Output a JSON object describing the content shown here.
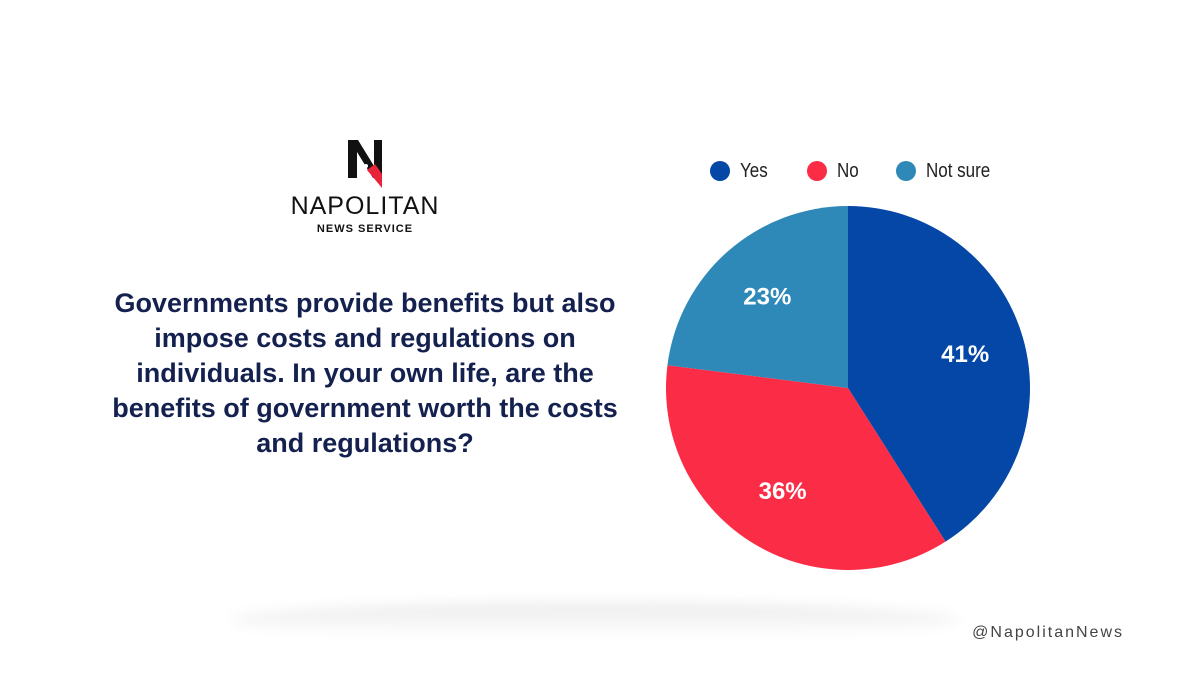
{
  "brand": {
    "name": "NAPOLITAN",
    "subtitle": "NEWS SERVICE",
    "logo_letter": "N",
    "handle": "@NapolitanNews",
    "logo_colors": {
      "mark": "#111111",
      "accent": "#e8243b"
    }
  },
  "question": "Governments provide benefits but also impose costs and regulations on individuals. In your own life, are the benefits of government worth the costs and regulations?",
  "chart_data": {
    "type": "pie",
    "title": "",
    "categories": [
      "Yes",
      "No",
      "Not sure"
    ],
    "values": [
      41,
      36,
      23
    ],
    "value_labels": [
      "41%",
      "36%",
      "23%"
    ],
    "colors": [
      "#0447a6",
      "#fb2c46",
      "#2e89b8"
    ],
    "legend_position": "top",
    "start_angle": "12 o'clock",
    "direction": "clockwise"
  }
}
